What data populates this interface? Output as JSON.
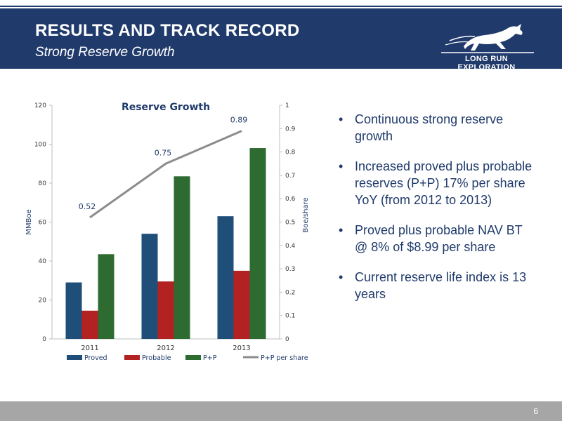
{
  "header": {
    "title": "RESULTS AND TRACK RECORD",
    "subtitle": "Strong Reserve Growth",
    "logo_text": "LONG RUN EXPLORATION"
  },
  "bullets": [
    "Continuous strong reserve growth",
    "Increased proved plus probable reserves (P+P) 17% per share YoY (from 2012 to 2013)",
    "Proved plus probable NAV BT @ 8% of $8.99 per share",
    "Current reserve life index is 13 years"
  ],
  "footer": {
    "page_number": "6"
  },
  "colors": {
    "header_bg": "#1f3a6b",
    "proved": "#1f4e79",
    "probable": "#b22222",
    "pp": "#2e6b30",
    "line": "#8c8c8c",
    "footer_bg": "#a6a6a6"
  },
  "chart_data": {
    "type": "bar",
    "title": "Reserve Growth",
    "ylabel": "MMBoe",
    "y2label": "Boe/share",
    "ylim": [
      0,
      120
    ],
    "y2lim": [
      0,
      1
    ],
    "yticks": [
      0,
      20,
      40,
      60,
      80,
      100,
      120
    ],
    "y2ticks": [
      0,
      0.1,
      0.2,
      0.3,
      0.4,
      0.5,
      0.6,
      0.7,
      0.8,
      0.9,
      1
    ],
    "categories": [
      "2011",
      "2012",
      "2013"
    ],
    "series": [
      {
        "name": "Proved",
        "type": "bar",
        "axis": "left",
        "color": "#1f4e79",
        "values": [
          29,
          54,
          63
        ]
      },
      {
        "name": "Probable",
        "type": "bar",
        "axis": "left",
        "color": "#b22222",
        "values": [
          14.5,
          29.5,
          35
        ]
      },
      {
        "name": "P+P",
        "type": "bar",
        "axis": "left",
        "color": "#2e6b30",
        "values": [
          43.5,
          83.5,
          98
        ]
      },
      {
        "name": "P+P per share",
        "type": "line",
        "axis": "right",
        "color": "#8c8c8c",
        "values": [
          0.52,
          0.75,
          0.89
        ],
        "labels": [
          "0.52",
          "0.75",
          "0.89"
        ]
      }
    ],
    "grid": false,
    "legend": "bottom"
  }
}
